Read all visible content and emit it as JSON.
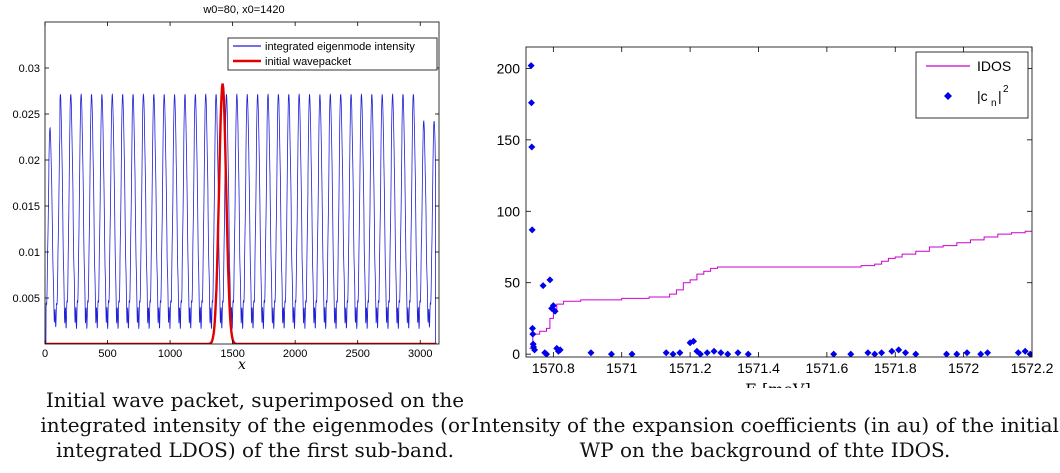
{
  "figures": {
    "left": {
      "caption": "Initial wave packet, superimposed on the integrated intensity of the eigenmodes (or integrated LDOS) of the first sub-band."
    },
    "right": {
      "caption": "Intensity of the expansion coefficients (in au) of the initial WP on the background of thte IDOS."
    }
  },
  "chart_data": [
    {
      "type": "line",
      "title": "w0=80, x0=1420",
      "xlabel": "x",
      "ylabel": "",
      "xlim": [
        0,
        3150
      ],
      "ylim": [
        0,
        0.035
      ],
      "xticks": [
        0,
        500,
        1000,
        1500,
        2000,
        2500,
        3000
      ],
      "yticks": [
        0.005,
        0.01,
        0.015,
        0.02,
        0.025,
        0.03
      ],
      "ytick_labels": [
        "0.005",
        "0.01",
        "0.015",
        "0.02",
        "0.025",
        "0.03"
      ],
      "grid": false,
      "legend": "top-right",
      "series": [
        {
          "name": "integrated eigenmode intensity",
          "color": "#1f1fd6",
          "style": "oscillation",
          "x_range": [
            0,
            3130
          ],
          "period": 83,
          "peak": 0.027,
          "trough": 0.0028,
          "edge_peak": 0.024
        },
        {
          "name": "initial wavepacket",
          "color": "#e00000",
          "style": "gaussian",
          "center": 1420,
          "width": 40,
          "amplitude": 0.0283
        }
      ]
    },
    {
      "type": "line",
      "title": "",
      "xlabel": "E [meV]",
      "ylabel": "",
      "xlim": [
        1570.72,
        1572.2
      ],
      "ylim": [
        -2,
        215
      ],
      "xticks": [
        1570.8,
        1571,
        1571.2,
        1571.4,
        1571.6,
        1571.8,
        1572,
        1572.2
      ],
      "xtick_labels": [
        "1570.8",
        "1571",
        "1571.2",
        "1571.4",
        "1571.6",
        "1571.8",
        "1572",
        "1572.2"
      ],
      "yticks": [
        0,
        50,
        100,
        150,
        200
      ],
      "grid": false,
      "legend": "top-right",
      "series": [
        {
          "name": "IDOS",
          "color": "#cc00cc",
          "x": [
            1570.73,
            1570.74,
            1570.76,
            1570.78,
            1570.79,
            1570.8,
            1570.81,
            1570.83,
            1570.85,
            1570.88,
            1570.92,
            1570.96,
            1571.0,
            1571.04,
            1571.08,
            1571.12,
            1571.14,
            1571.16,
            1571.18,
            1571.2,
            1571.22,
            1571.24,
            1571.26,
            1571.28,
            1571.3,
            1571.4,
            1571.5,
            1571.6,
            1571.7,
            1571.74,
            1571.76,
            1571.78,
            1571.8,
            1571.82,
            1571.86,
            1571.9,
            1571.94,
            1571.98,
            1572.02,
            1572.06,
            1572.1,
            1572.14,
            1572.18,
            1572.2
          ],
          "y": [
            4,
            14,
            16,
            18,
            25,
            31,
            35,
            37,
            37,
            38,
            38,
            38,
            39,
            39,
            40,
            40,
            42,
            45,
            50,
            52,
            56,
            58,
            60,
            61,
            61,
            61,
            61,
            61,
            62,
            63,
            65,
            67,
            68,
            70,
            72,
            75,
            76,
            78,
            80,
            82,
            84,
            85,
            86,
            86
          ]
        },
        {
          "name": "|c_n|^2",
          "color": "#0000ee",
          "marker": "diamond",
          "x": [
            1570.735,
            1570.736,
            1570.737,
            1570.738,
            1570.739,
            1570.74,
            1570.741,
            1570.742,
            1570.745,
            1570.77,
            1570.775,
            1570.78,
            1570.79,
            1570.795,
            1570.8,
            1570.805,
            1570.81,
            1570.815,
            1570.82,
            1570.91,
            1570.97,
            1571.03,
            1571.13,
            1571.15,
            1571.17,
            1571.2,
            1571.21,
            1571.22,
            1571.23,
            1571.25,
            1571.27,
            1571.29,
            1571.31,
            1571.34,
            1571.37,
            1571.62,
            1571.67,
            1571.72,
            1571.74,
            1571.76,
            1571.79,
            1571.81,
            1571.83,
            1571.86,
            1571.95,
            1571.98,
            1572.01,
            1572.05,
            1572.07,
            1572.16,
            1572.18,
            1572.195
          ],
          "y": [
            202,
            176,
            145,
            87,
            18,
            14,
            7,
            5,
            3,
            48,
            1,
            0,
            52,
            32,
            34,
            30,
            4,
            2,
            3,
            1,
            0,
            0,
            1,
            0,
            1,
            8,
            9,
            2,
            0,
            1,
            2,
            1,
            0,
            1,
            0,
            0,
            0,
            1,
            0,
            1,
            2,
            3,
            1,
            0,
            0,
            0,
            1,
            0,
            1,
            1,
            2,
            0
          ]
        }
      ]
    }
  ]
}
